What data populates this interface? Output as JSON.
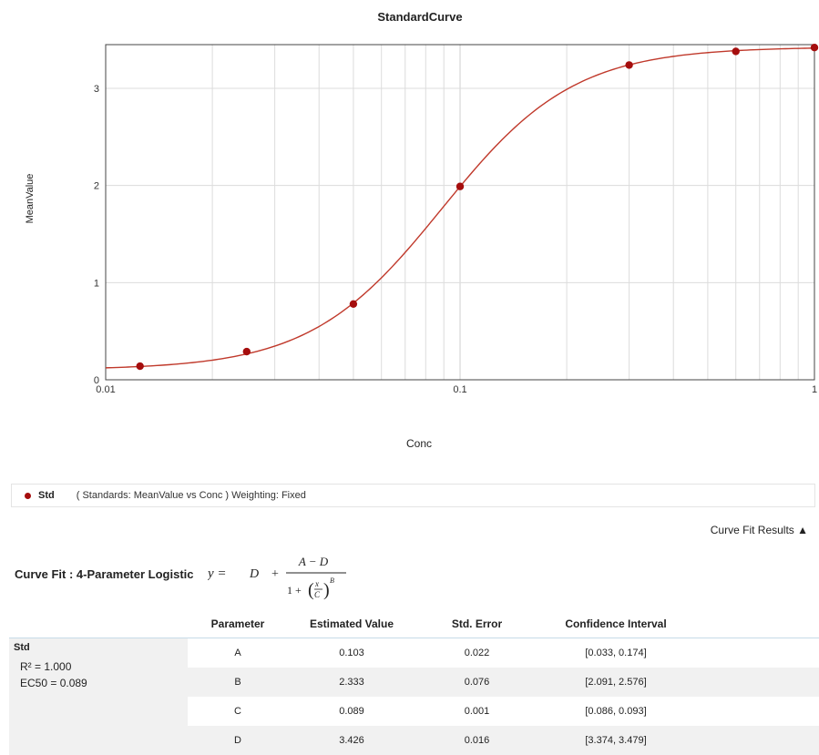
{
  "chart_data": {
    "type": "scatter",
    "title": "StandardCurve",
    "xlabel": "Conc",
    "ylabel": "MeanValue",
    "xscale": "log",
    "xlim": [
      0.01,
      1
    ],
    "ylim": [
      0,
      3.45
    ],
    "xticks": [
      {
        "value": 0.01,
        "label": "0.01"
      },
      {
        "value": 0.1,
        "label": "0.1"
      },
      {
        "value": 1,
        "label": "1"
      }
    ],
    "yticks": [
      {
        "value": 0,
        "label": "0"
      },
      {
        "value": 1,
        "label": "1"
      },
      {
        "value": 2,
        "label": "2"
      },
      {
        "value": 3,
        "label": "3"
      }
    ],
    "grid": true,
    "series": [
      {
        "name": "Std",
        "color": "#a50d0d",
        "points": [
          {
            "x": 0.0125,
            "y": 0.14
          },
          {
            "x": 0.025,
            "y": 0.29
          },
          {
            "x": 0.05,
            "y": 0.78
          },
          {
            "x": 0.1,
            "y": 1.99
          },
          {
            "x": 0.3,
            "y": 3.24
          },
          {
            "x": 0.6,
            "y": 3.38
          },
          {
            "x": 1.0,
            "y": 3.42
          }
        ]
      }
    ],
    "fit": {
      "model": "4-Parameter Logistic",
      "A": 0.103,
      "B": 2.333,
      "C": 0.089,
      "D": 3.426,
      "color": "#c0392b"
    }
  },
  "legend": {
    "name": "Std",
    "description": "( Standards: MeanValue vs Conc )  Weighting: Fixed"
  },
  "results_toggle": "Curve Fit Results ▲",
  "curve_fit_label": "Curve Fit : 4-Parameter Logistic",
  "formula": {
    "y": "y =",
    "D": "D",
    "plus": "+",
    "numerator": "A − D",
    "denominator_one": "1 +",
    "frac_x": "x",
    "frac_c": "C",
    "exponent": "B"
  },
  "table": {
    "headers": [
      "Parameter",
      "Estimated Value",
      "Std. Error",
      "Confidence Interval"
    ],
    "group": {
      "name": "Std",
      "r2_label": "R² = 1.000",
      "ec50_label": "EC50 = 0.089"
    },
    "rows": [
      {
        "param": "A",
        "estimate": "0.103",
        "std_error": "0.022",
        "ci": "[0.033, 0.174]"
      },
      {
        "param": "B",
        "estimate": "2.333",
        "std_error": "0.076",
        "ci": "[2.091, 2.576]"
      },
      {
        "param": "C",
        "estimate": "0.089",
        "std_error": "0.001",
        "ci": "[0.086, 0.093]"
      },
      {
        "param": "D",
        "estimate": "3.426",
        "std_error": "0.016",
        "ci": "[3.374, 3.479]"
      }
    ]
  }
}
